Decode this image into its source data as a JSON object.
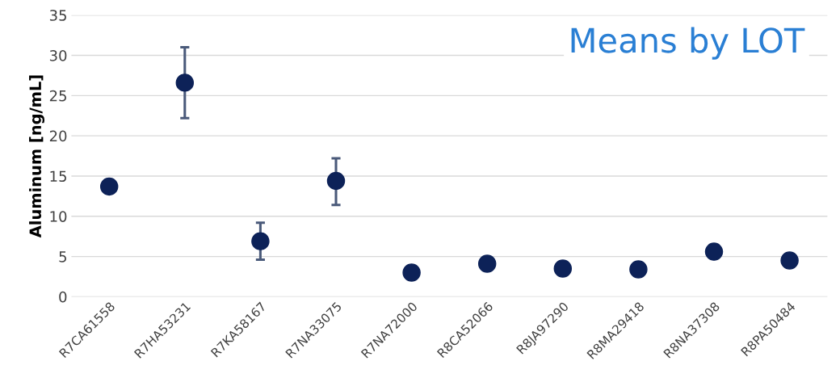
{
  "chart_data": {
    "type": "scatter",
    "title": "Means by LOT",
    "ylabel": "Aluminum [ng/mL]",
    "categories": [
      "R7CA61558",
      "R7HA53231",
      "R7KA58167",
      "R7NA33075",
      "R7NA72000",
      "R8CA52066",
      "R8JA97290",
      "R8MA29418",
      "R8NA37308",
      "R8PA50484"
    ],
    "series": [
      {
        "color": "#0d2258",
        "values": [
          13.7,
          26.6,
          6.9,
          14.4,
          3.0,
          4.1,
          3.5,
          3.4,
          5.6,
          4.5
        ],
        "errors": [
          null,
          [
            22.2,
            31.0
          ],
          [
            4.6,
            9.2
          ],
          [
            11.4,
            17.2
          ],
          null,
          null,
          null,
          null,
          null,
          null
        ]
      }
    ],
    "ylim": [
      0,
      35
    ],
    "yticks": [
      0,
      5,
      10,
      15,
      20,
      25,
      30,
      35
    ],
    "grid": "y",
    "marker": "circle"
  }
}
